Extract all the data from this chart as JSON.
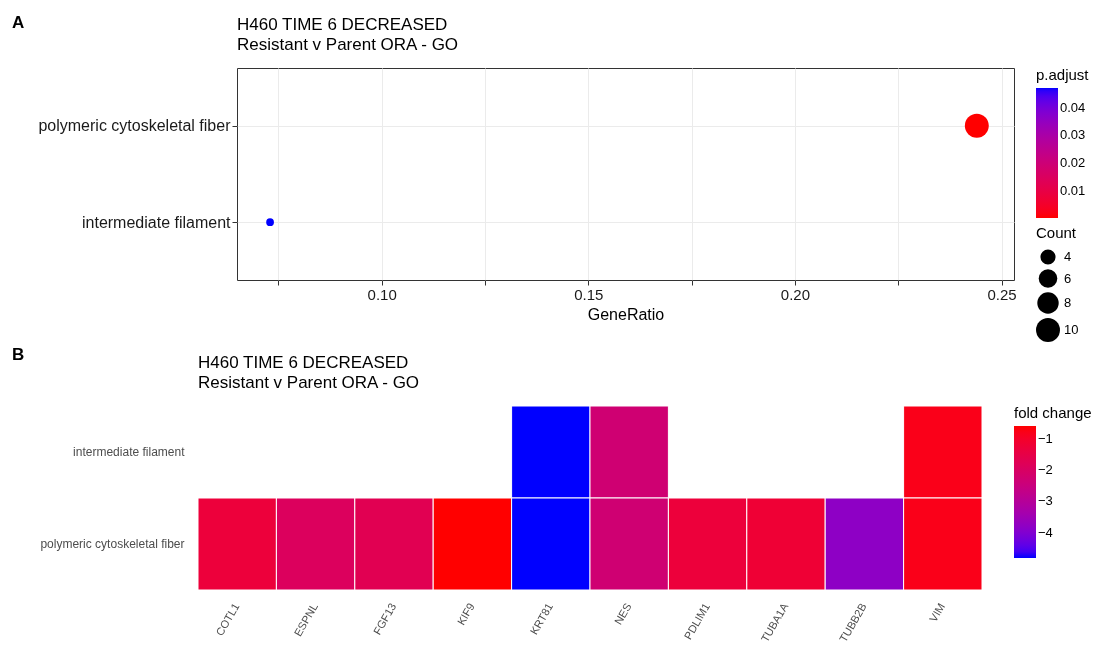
{
  "chart_data": [
    {
      "type": "bubble",
      "orientation": "horizontal",
      "title": "H460 TIME 6 DECREASED",
      "subtitle": "Resistant v Parent ORA - GO",
      "xlabel": "GeneRatio",
      "clabel": "p.adjust",
      "legend_title": "Count",
      "annotations": [
        "A"
      ],
      "categories": [
        "polymeric cytoskeletal fiber",
        "intermediate filament"
      ],
      "values": [
        0.244,
        0.073
      ],
      "sizes": [
        10,
        1.05
      ],
      "size_legend": [
        4,
        6,
        8,
        10
      ],
      "cvalues": [
        0.0004,
        0.047
      ],
      "clim": [
        0.0004,
        0.047
      ],
      "cticks": [
        0.01,
        0.02,
        0.03,
        0.04
      ],
      "xlim": [
        0.065,
        0.253
      ],
      "xticks": [
        {
          "value": 0.075,
          "label": null
        },
        {
          "value": 0.1,
          "label": "0.10"
        },
        {
          "value": 0.125,
          "label": null
        },
        {
          "value": 0.15,
          "label": "0.15"
        },
        {
          "value": 0.175,
          "label": null
        },
        {
          "value": 0.2,
          "label": "0.20"
        },
        {
          "value": 0.225,
          "label": null
        },
        {
          "value": 0.25,
          "label": "0.25"
        }
      ],
      "grid": true
    },
    {
      "type": "heatmap",
      "title": "H460 TIME 6 DECREASED",
      "subtitle": "Resistant v Parent ORA - GO",
      "clabel": "fold change",
      "annotations": [
        "B"
      ],
      "categories": [
        "COTL1",
        "ESPNL",
        "FGF13",
        "KIF9",
        "KRT81",
        "NES",
        "PDLIM1",
        "TUBA1A",
        "TUBB2B",
        "VIM"
      ],
      "y_categories": [
        "intermediate filament",
        "polymeric cytoskeletal fiber"
      ],
      "cells": [
        [
          null,
          null,
          null,
          null,
          -4.8,
          -2.3,
          null,
          null,
          null,
          -0.8
        ],
        [
          -1.3,
          -1.9,
          -1.7,
          -0.6,
          -4.8,
          -2.3,
          -1.3,
          -1.2,
          -3.8,
          -0.8
        ]
      ],
      "clim": [
        -4.8,
        -0.6
      ],
      "cticks": [
        -1,
        -2,
        -3,
        -4
      ]
    }
  ]
}
